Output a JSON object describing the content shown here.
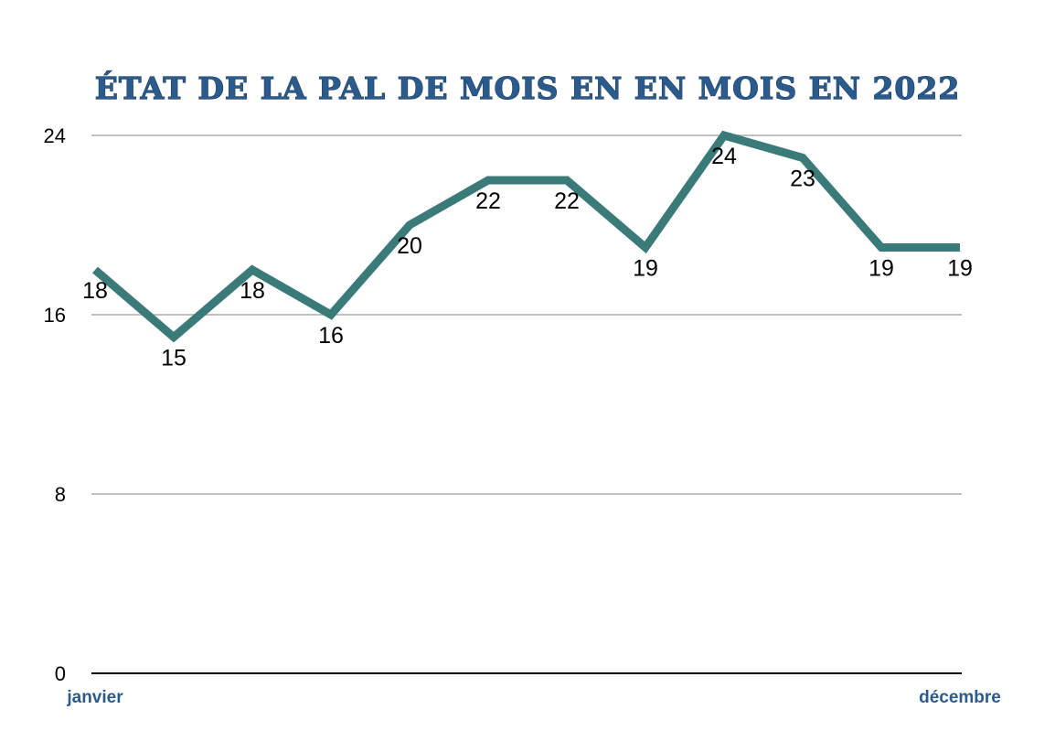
{
  "chart_data": {
    "type": "line",
    "title": "ÉTAT DE LA PAL DE MOIS EN EN MOIS EN 2022",
    "categories": [
      "janvier",
      "",
      "",
      "",
      "",
      "",
      "",
      "",
      "",
      "",
      "",
      "décembre"
    ],
    "series": [
      {
        "values": [
          18,
          15,
          18,
          16,
          20,
          22,
          22,
          19,
          24,
          23,
          19,
          19
        ]
      }
    ],
    "ylim": [
      0,
      24
    ],
    "yticks": [
      0,
      8,
      16,
      24
    ],
    "xlabel": "",
    "ylabel": "",
    "grid": true,
    "data_labels": true,
    "legend": "none"
  },
  "colors": {
    "line": "#3a7a78",
    "title": "#2b5b8c",
    "x_labels": "#2b5b8c",
    "grid": "#c0c0c0",
    "axis": "#000000"
  }
}
